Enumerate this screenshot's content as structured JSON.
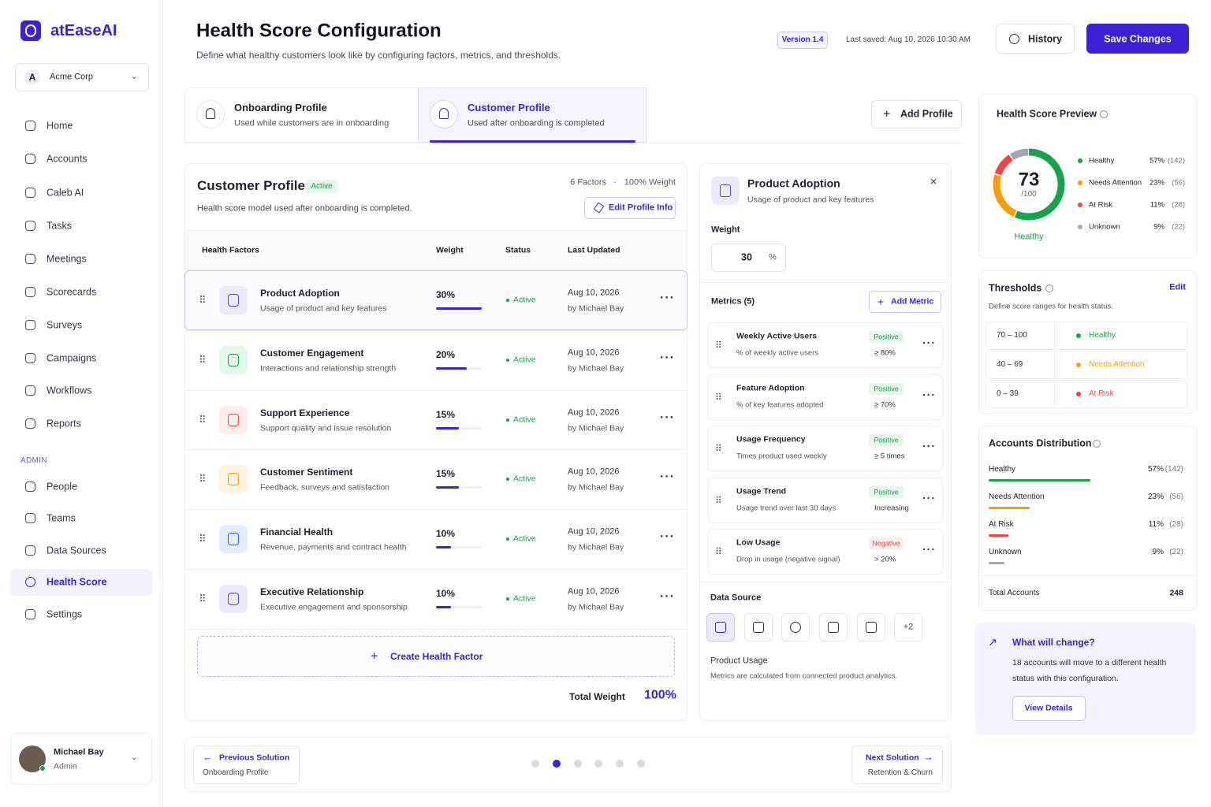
{
  "sidebar": {
    "brand": "atEaseAI",
    "org": {
      "initial": "A",
      "name": "Acme Corp"
    },
    "nav": [
      "Home",
      "Accounts",
      "Caleb AI",
      "Tasks",
      "Meetings",
      "Scorecards",
      "Surveys",
      "Campaigns",
      "Workflows",
      "Reports"
    ],
    "admin_label": "ADMIN",
    "admin_nav": [
      "People",
      "Teams",
      "Data Sources",
      "Health Score",
      "Settings"
    ],
    "user": {
      "name": "Michael Bay",
      "role": "Admin"
    }
  },
  "header": {
    "title": "Health Score Configuration",
    "subtitle": "Define what healthy customers look like by configuring factors, metrics, and thresholds.",
    "version": "Version 1.4",
    "last_saved": "Last saved: Aug 10, 2026 10:30 AM",
    "history": "History",
    "save": "Save Changes"
  },
  "tabs": [
    {
      "title": "Onboarding Profile",
      "desc": "Used while customers are in onboarding"
    },
    {
      "title": "Customer Profile",
      "desc": "Used after onboarding is completed"
    }
  ],
  "add_profile": "Add Profile",
  "profile": {
    "title": "Customer Profile",
    "status": "Active",
    "factors_count": "6 Factors",
    "weight_total": "100% Weight",
    "desc": "Health score model used after onboarding is completed.",
    "edit": "Edit Profile Info",
    "columns": [
      "Health Factors",
      "Weight",
      "Status",
      "Last Updated"
    ],
    "factors": [
      {
        "name": "Product Adoption",
        "desc": "Usage of product and key features",
        "weight": {
          "value": 30,
          "label": "30%"
        },
        "status": "Active",
        "date": "Aug 10, 2026",
        "by": "by Michael Bay"
      },
      {
        "name": "Customer Engagement",
        "desc": "Interactions and relationship strength",
        "weight": {
          "value": 20,
          "label": "20%"
        },
        "status": "Active",
        "date": "Aug 10, 2026",
        "by": "by Michael Bay"
      },
      {
        "name": "Support Experience",
        "desc": "Support quality and issue resolution",
        "weight": {
          "value": 15,
          "label": "15%"
        },
        "status": "Active",
        "date": "Aug 10, 2026",
        "by": "by Michael Bay"
      },
      {
        "name": "Customer Sentiment",
        "desc": "Feedback, surveys and satisfaction",
        "weight": {
          "value": 15,
          "label": "15%"
        },
        "status": "Active",
        "date": "Aug 10, 2026",
        "by": "by Michael Bay"
      },
      {
        "name": "Financial Health",
        "desc": "Revenue, payments and contract health",
        "weight": {
          "value": 10,
          "label": "10%"
        },
        "status": "Active",
        "date": "Aug 10, 2026",
        "by": "by Michael Bay"
      },
      {
        "name": "Executive Relationship",
        "desc": "Executive engagement and sponsorship",
        "weight": {
          "value": 10,
          "label": "10%"
        },
        "status": "Active",
        "date": "Aug 10, 2026",
        "by": "by Michael Bay"
      }
    ],
    "create": "Create Health Factor",
    "total_label": "Total Weight",
    "total": "100%"
  },
  "detail": {
    "title": "Product Adoption",
    "desc": "Usage of product and key features",
    "weight_label": "Weight",
    "weight_value": "30",
    "weight_unit": "%",
    "metrics_label": "Metrics (5)",
    "add_metric": "Add Metric",
    "metrics": [
      {
        "name": "Weekly Active Users",
        "desc": "% of weekly active users",
        "tag": "Positive",
        "threshold": "≥ 80%"
      },
      {
        "name": "Feature Adoption",
        "desc": "% of key features adopted",
        "tag": "Positive",
        "threshold": "≥ 70%"
      },
      {
        "name": "Usage Frequency",
        "desc": "Times product used weekly",
        "tag": "Positive",
        "threshold": "≥ 5 times"
      },
      {
        "name": "Usage Trend",
        "desc": "Usage trend over last 30 days",
        "tag": "Positive",
        "threshold": "Increasing"
      },
      {
        "name": "Low Usage",
        "desc": "Drop in usage (negative signal)",
        "tag": "Negative",
        "threshold": "> 20%"
      }
    ],
    "source_label": "Data Source",
    "source_more": "+2",
    "source_name": "Product Usage",
    "source_desc": "Metrics are calculated from connected product analytics."
  },
  "preview": {
    "title": "Health Score Preview",
    "score": "73",
    "max": "/100",
    "status": "Healthy",
    "legend": [
      {
        "label": "Healthy",
        "pct": {
          "value": 57,
          "label": "57%"
        },
        "count": "(142)"
      },
      {
        "label": "Needs Attention",
        "pct": {
          "value": 23,
          "label": "23%"
        },
        "count": "(56)"
      },
      {
        "label": "At Risk",
        "pct": {
          "value": 11,
          "label": "11%"
        },
        "count": "(28)"
      },
      {
        "label": "Unknown",
        "pct": {
          "value": 9,
          "label": "9%"
        },
        "count": "(22)"
      }
    ]
  },
  "thresholds": {
    "title": "Thresholds",
    "edit": "Edit",
    "desc": "Define score ranges for health status.",
    "rows": [
      {
        "range": "70 – 100",
        "label": "Healthy"
      },
      {
        "range": "40 – 69",
        "label": "Needs Attention"
      },
      {
        "range": "0 – 39",
        "label": "At Risk"
      }
    ]
  },
  "distribution": {
    "title": "Accounts Distribution",
    "items": [
      {
        "label": "Healthy",
        "pct": {
          "value": 57,
          "label": "57%"
        },
        "count": "(142)"
      },
      {
        "label": "Needs Attention",
        "pct": {
          "value": 23,
          "label": "23%"
        },
        "count": "(56)"
      },
      {
        "label": "At Risk",
        "pct": {
          "value": 11,
          "label": "11%"
        },
        "count": "(28)"
      },
      {
        "label": "Unknown",
        "pct": {
          "value": 9,
          "label": "9%"
        },
        "count": "(22)"
      }
    ],
    "total_label": "Total Accounts",
    "total": "248"
  },
  "change": {
    "title": "What will change?",
    "text": "18 accounts will move to a different health status with this configuration.",
    "button": "View Details"
  },
  "footer": {
    "prev": {
      "label": "Previous Solution",
      "sub": "Onboarding Profile"
    },
    "next": {
      "label": "Next Solution",
      "sub": "Retention & Churn"
    }
  }
}
